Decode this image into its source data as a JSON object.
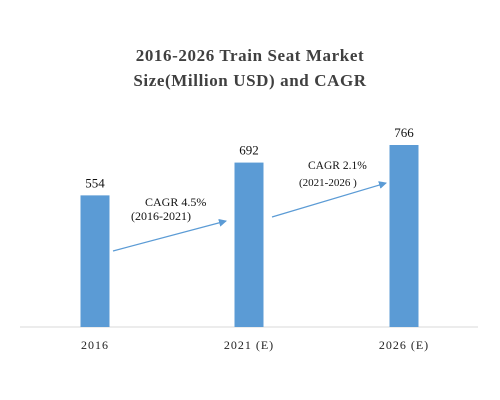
{
  "chart_data": {
    "type": "bar",
    "title_line1": "2016-2026 Train Seat Market",
    "title_line2": "Size(Million USD) and CAGR",
    "categories": [
      "2016",
      "2021 (E)",
      "2026 (E)"
    ],
    "values": [
      554,
      692,
      766
    ],
    "ylim": [
      0,
      800
    ],
    "grid": false,
    "bar_color": "#5b9bd5",
    "arrow_color": "#5b9bd5",
    "annotations": [
      {
        "label": "CAGR 4.5%",
        "period": "(2016-2021)",
        "from": 0,
        "to": 1
      },
      {
        "label": "CAGR 2.1%",
        "period": "(2021-2026 )",
        "from": 1,
        "to": 2
      }
    ]
  }
}
